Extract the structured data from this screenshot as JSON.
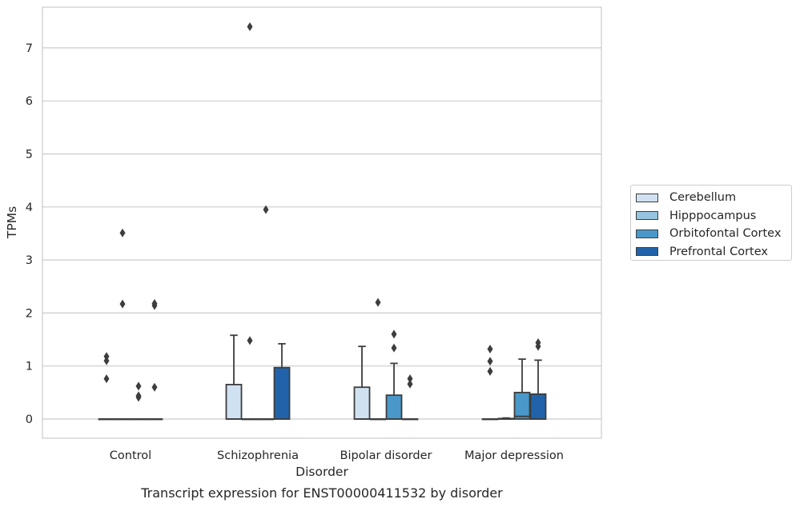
{
  "chart_data": {
    "type": "box",
    "caption": "Transcript expression for ENST00000411532 by disorder",
    "xlabel": "Disorder",
    "ylabel": "TPMs",
    "ylim": [
      -0.35,
      7.75
    ],
    "yticks": [
      0,
      1,
      2,
      3,
      4,
      5,
      6,
      7
    ],
    "grid": true,
    "legend_position": "right",
    "categories": [
      "Control",
      "Schizophrenia",
      "Bipolar disorder",
      "Major depression"
    ],
    "series": [
      {
        "name": "Cerebellum",
        "color": "#d0e1f2",
        "boxes": [
          {
            "q1": 0,
            "median": 0,
            "q3": 0,
            "whisker_low": 0,
            "whisker_high": 0,
            "outliers": [
              0.76,
              1.1,
              1.18
            ]
          },
          {
            "q1": 0,
            "median": 0,
            "q3": 0.65,
            "whisker_low": 0,
            "whisker_high": 1.58,
            "outliers": []
          },
          {
            "q1": 0,
            "median": 0,
            "q3": 0.6,
            "whisker_low": 0,
            "whisker_high": 1.37,
            "outliers": []
          },
          {
            "q1": 0,
            "median": 0,
            "q3": 0,
            "whisker_low": 0,
            "whisker_high": 0,
            "outliers": [
              0.9,
              1.09,
              1.32
            ]
          }
        ]
      },
      {
        "name": "Hipppocampus",
        "color": "#94c4df",
        "boxes": [
          {
            "q1": 0,
            "median": 0,
            "q3": 0,
            "whisker_low": 0,
            "whisker_high": 0,
            "outliers": [
              2.17,
              3.51
            ]
          },
          {
            "q1": 0,
            "median": 0,
            "q3": 0,
            "whisker_low": 0,
            "whisker_high": 0,
            "outliers": [
              1.48,
              7.4
            ]
          },
          {
            "q1": 0,
            "median": 0,
            "q3": 0,
            "whisker_low": 0,
            "whisker_high": 0,
            "outliers": [
              2.2
            ]
          },
          {
            "q1": 0,
            "median": 0,
            "q3": 0.01,
            "whisker_low": 0,
            "whisker_high": 0.02,
            "outliers": []
          }
        ]
      },
      {
        "name": "Orbitofontal Cortex",
        "color": "#4a98c9",
        "boxes": [
          {
            "q1": 0,
            "median": 0,
            "q3": 0,
            "whisker_low": 0,
            "whisker_high": 0,
            "outliers": [
              0.41,
              0.44,
              0.62
            ]
          },
          {
            "q1": 0,
            "median": 0,
            "q3": 0,
            "whisker_low": 0,
            "whisker_high": 0,
            "outliers": [
              3.95
            ]
          },
          {
            "q1": 0,
            "median": 0,
            "q3": 0.45,
            "whisker_low": 0,
            "whisker_high": 1.05,
            "outliers": [
              1.34,
              1.6
            ]
          },
          {
            "q1": 0,
            "median": 0.05,
            "q3": 0.5,
            "whisker_low": 0,
            "whisker_high": 1.13,
            "outliers": []
          }
        ]
      },
      {
        "name": "Prefrontal Cortex",
        "color": "#2163aa",
        "boxes": [
          {
            "q1": 0,
            "median": 0,
            "q3": 0,
            "whisker_low": 0,
            "whisker_high": 0,
            "outliers": [
              0.6,
              2.14,
              2.18
            ]
          },
          {
            "q1": 0,
            "median": 0,
            "q3": 0.97,
            "whisker_low": 0,
            "whisker_high": 1.42,
            "outliers": []
          },
          {
            "q1": 0,
            "median": 0,
            "q3": 0,
            "whisker_low": 0,
            "whisker_high": 0,
            "outliers": [
              0.66,
              0.76
            ]
          },
          {
            "q1": 0,
            "median": 0,
            "q3": 0.47,
            "whisker_low": 0,
            "whisker_high": 1.11,
            "outliers": [
              1.37,
              1.44
            ]
          }
        ]
      }
    ]
  }
}
